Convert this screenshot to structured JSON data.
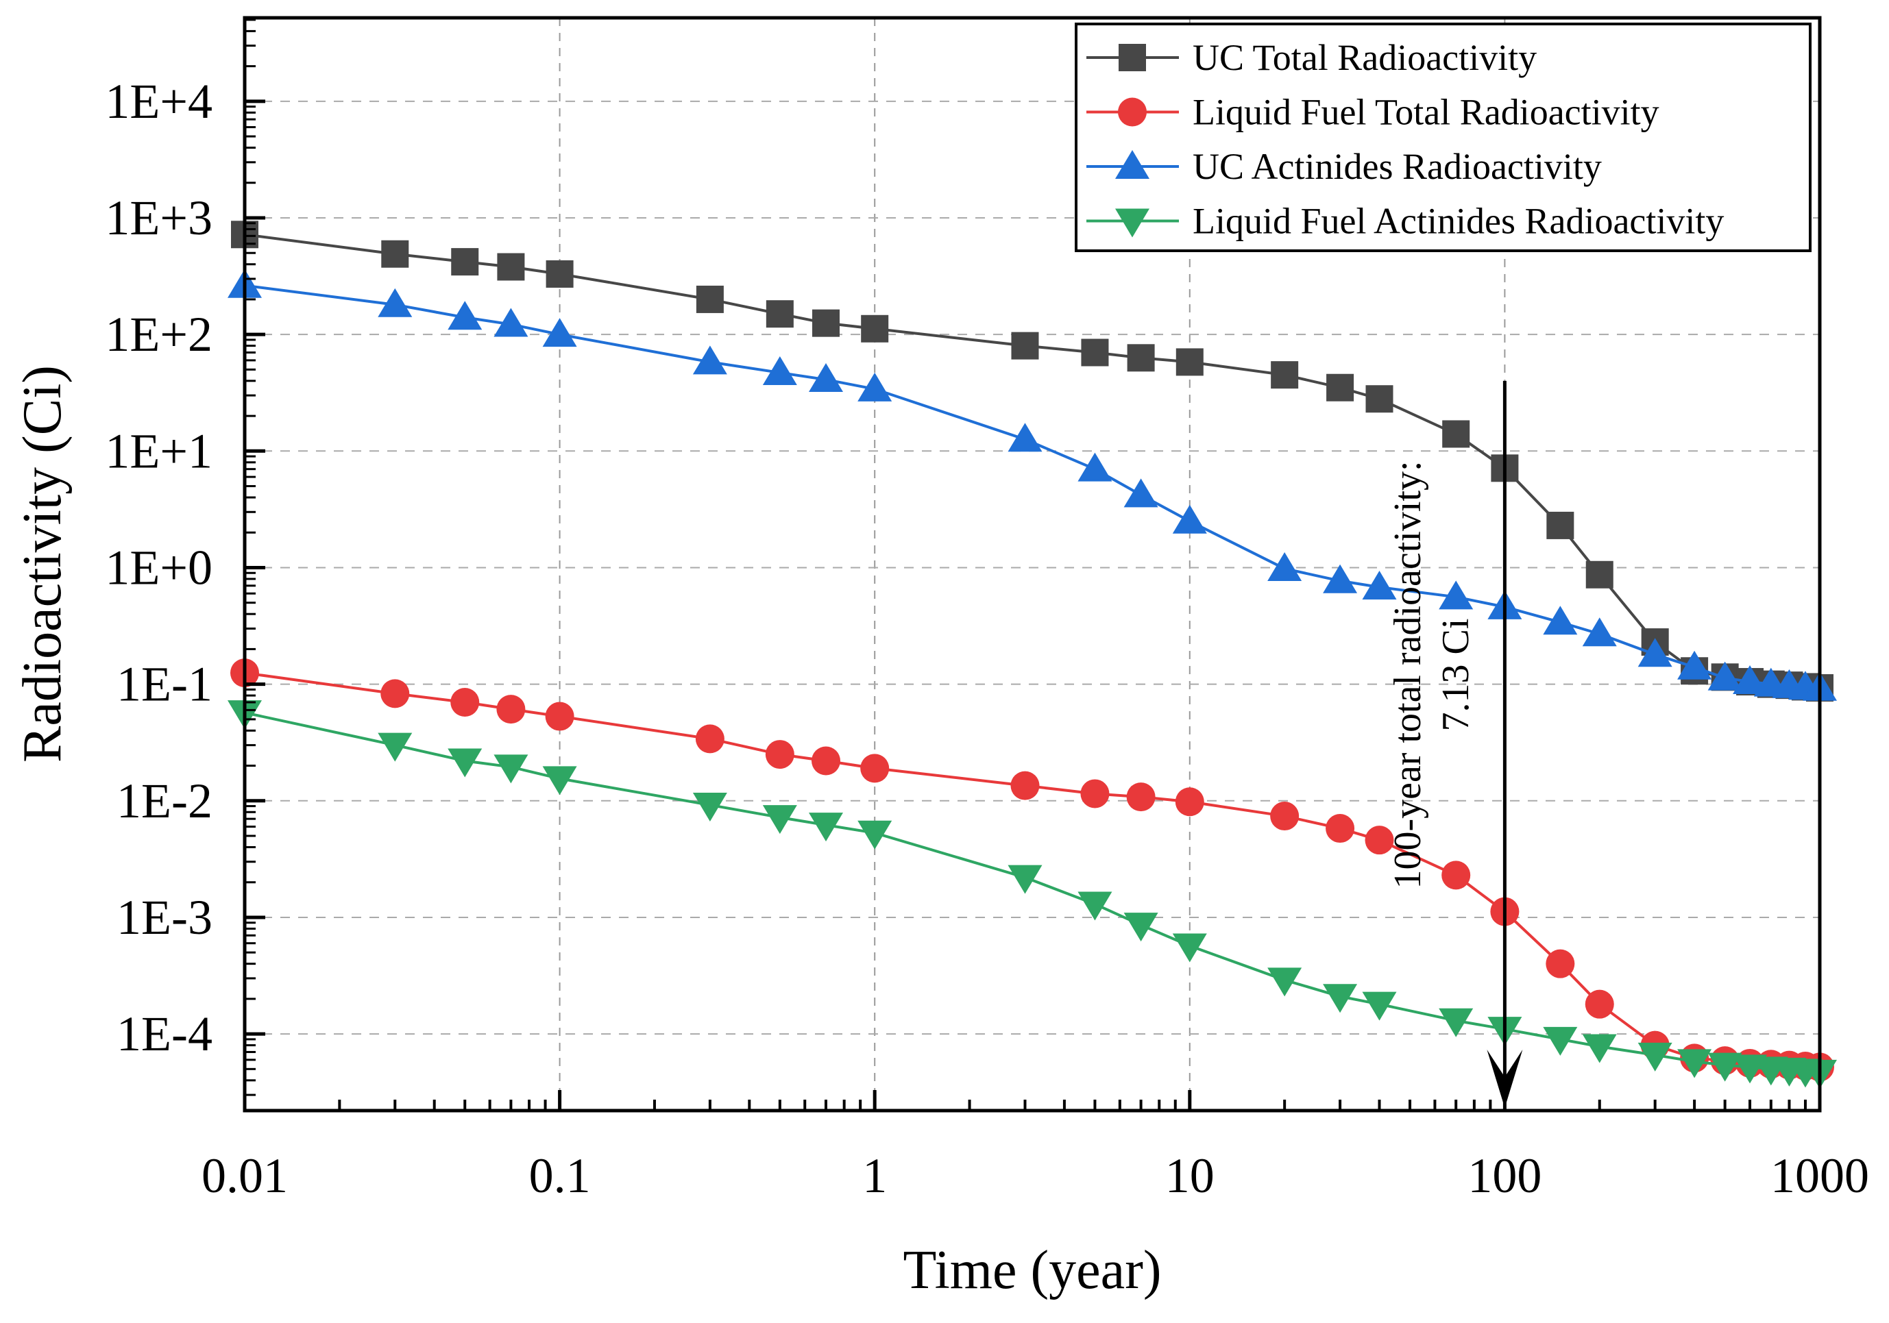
{
  "chart_data": {
    "type": "line",
    "title": "",
    "xlabel": "Time (year)",
    "ylabel": "Radioactivity (Ci)",
    "xscale": "log",
    "yscale": "log",
    "xlim": [
      0.01,
      1000
    ],
    "ylim": [
      2.2e-05,
      52000.0
    ],
    "grid": true,
    "legend_position": "top-right",
    "x_tick_labels": [
      "0.01",
      "0.1",
      "1",
      "10",
      "100",
      "1000"
    ],
    "x_tick_values": [
      0.01,
      0.1,
      1,
      10,
      100,
      1000
    ],
    "y_tick_labels": [
      "1E+4",
      "1E+3",
      "1E+2",
      "1E+1",
      "1E+0",
      "1E-1",
      "1E-2",
      "1E-3",
      "1E-4"
    ],
    "y_tick_values": [
      10000.0,
      1000.0,
      100.0,
      10.0,
      1,
      0.1,
      0.01,
      0.001,
      0.0001
    ],
    "x": [
      0.01,
      0.03,
      0.05,
      0.07,
      0.1,
      0.3,
      0.5,
      0.7,
      1,
      3,
      5,
      7,
      10,
      20,
      30,
      40,
      70,
      100,
      150,
      200,
      300,
      400,
      500,
      600,
      700,
      800,
      900,
      1000
    ],
    "series": [
      {
        "name": "UC Total Radioactivity",
        "color": "#474747",
        "marker": "square",
        "values": [
          720,
          490,
          420,
          380,
          330,
          200,
          150,
          125,
          112,
          80,
          70,
          63,
          58,
          45,
          35,
          28,
          14,
          7.13,
          2.3,
          0.87,
          0.23,
          0.13,
          0.115,
          0.105,
          0.1,
          0.098,
          0.095,
          0.093
        ]
      },
      {
        "name": "Liquid Fuel Total Radioactivity",
        "color": "#e8393a",
        "marker": "circle",
        "values": [
          0.125,
          0.083,
          0.07,
          0.061,
          0.053,
          0.034,
          0.025,
          0.022,
          0.019,
          0.0135,
          0.0115,
          0.0108,
          0.0098,
          0.0074,
          0.0058,
          0.0046,
          0.0023,
          0.00112,
          0.0004,
          0.00018,
          8e-05,
          6.2e-05,
          5.9e-05,
          5.6e-05,
          5.5e-05,
          5.4e-05,
          5.3e-05,
          5.2e-05
        ]
      },
      {
        "name": "UC Actinides Radioactivity",
        "color": "#1f6fd6",
        "marker": "triangle-up",
        "values": [
          263,
          180,
          140,
          122,
          100,
          58,
          47,
          41,
          34,
          12.6,
          7,
          4.2,
          2.5,
          0.98,
          0.77,
          0.68,
          0.56,
          0.46,
          0.34,
          0.27,
          0.18,
          0.14,
          0.113,
          0.105,
          0.1,
          0.097,
          0.094,
          0.092
        ]
      },
      {
        "name": "Liquid Fuel Actinides Radioactivity",
        "color": "#2ea663",
        "marker": "triangle-down",
        "values": [
          0.057,
          0.03,
          0.022,
          0.0195,
          0.0155,
          0.0092,
          0.0072,
          0.0062,
          0.0053,
          0.0022,
          0.0013,
          0.00086,
          0.00057,
          0.00029,
          0.00021,
          0.00018,
          0.00013,
          0.00011,
          9e-05,
          7.8e-05,
          6.6e-05,
          5.8e-05,
          5.4e-05,
          5.2e-05,
          5e-05,
          4.9e-05,
          4.8e-05,
          4.7e-05
        ]
      }
    ],
    "annotation": {
      "line1": "100-year total radioactivity:",
      "line2": "7.13 Ci",
      "arrow_x": 100,
      "arrow_from_y": 40,
      "arrow_to_y": 2.2e-05
    }
  }
}
